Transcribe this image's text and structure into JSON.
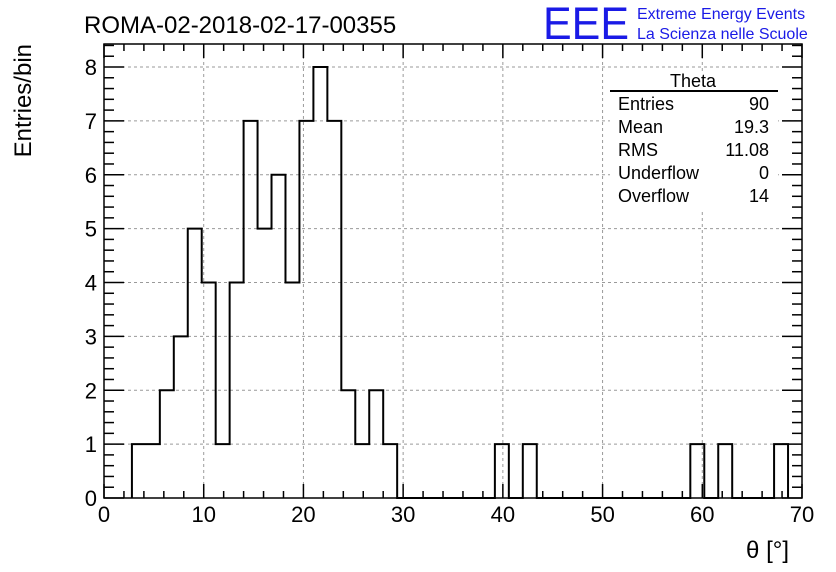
{
  "chart_data": {
    "type": "bar",
    "title": "ROMA-02-2018-02-17-00355",
    "xlabel": "θ [°]",
    "ylabel": "Entries/bin",
    "xlim": [
      0,
      70
    ],
    "ylim": [
      0,
      8.4
    ],
    "grid": true,
    "bin_width": 1.4,
    "bin_edges_start": 2.8,
    "counts": [
      1,
      1,
      2,
      3,
      5,
      4,
      1,
      4,
      7,
      5,
      6,
      4,
      7,
      8,
      7,
      2,
      1,
      2,
      1,
      0,
      0,
      0,
      0,
      0,
      0,
      0,
      1,
      0,
      1,
      0,
      0,
      0,
      0,
      0,
      0,
      0,
      0,
      0,
      0,
      0,
      1,
      0,
      1,
      0,
      0,
      0,
      1
    ],
    "x_ticks": [
      0,
      10,
      20,
      30,
      40,
      50,
      60,
      70
    ],
    "y_ticks": [
      0,
      1,
      2,
      3,
      4,
      5,
      6,
      7,
      8
    ],
    "stats_box": {
      "title": "Theta",
      "rows": [
        {
          "label": "Entries",
          "value": "90"
        },
        {
          "label": "Mean",
          "value": "19.3"
        },
        {
          "label": "RMS",
          "value": "11.08"
        },
        {
          "label": "Underflow",
          "value": "0"
        },
        {
          "label": "Overflow",
          "value": "14"
        }
      ]
    }
  },
  "logo": {
    "mark": "EEE",
    "line1": "Extreme Energy Events",
    "line2": "La Scienza nelle Scuole",
    "color": "#1a1ae6"
  }
}
